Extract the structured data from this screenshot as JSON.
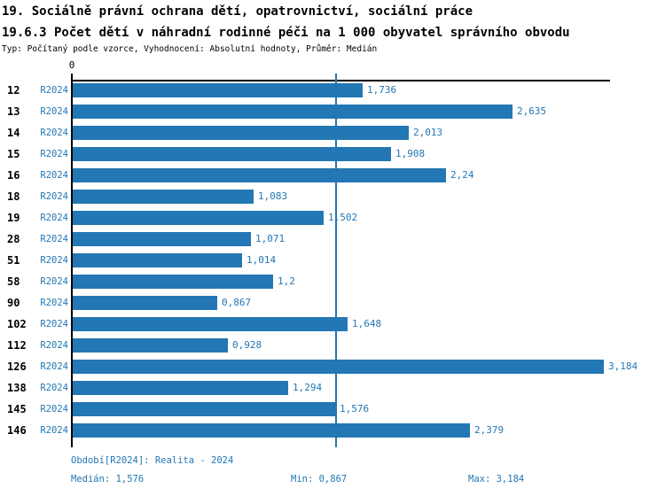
{
  "header": {
    "title_line1": "19. Sociálně právní ochrana dětí, opatrovnictví, sociální práce",
    "title_line2": "19.6.3 Počet dětí v náhradní rodinné péči na 1 000 obyvatel správního obvodu",
    "subtitle": "Typ: Počítaný podle vzorce, Vyhodnocení: Absolutní hodnoty, Průměr: Medián"
  },
  "chart_data": {
    "type": "bar",
    "orientation": "horizontal",
    "axis_origin_label": "0",
    "series_label": "R2024",
    "categories": [
      "12",
      "13",
      "14",
      "15",
      "16",
      "18",
      "19",
      "28",
      "51",
      "58",
      "90",
      "102",
      "112",
      "126",
      "138",
      "145",
      "146"
    ],
    "values": [
      1.736,
      2.635,
      2.013,
      1.908,
      2.24,
      1.083,
      1.502,
      1.071,
      1.014,
      1.2,
      0.867,
      1.648,
      0.928,
      3.184,
      1.294,
      1.576,
      2.379
    ],
    "value_labels": [
      "1,736",
      "2,635",
      "2,013",
      "1,908",
      "2,24",
      "1,083",
      "1,502",
      "1,071",
      "1,014",
      "1,2",
      "0,867",
      "1,648",
      "0,928",
      "3,184",
      "1,294",
      "1,576",
      "2,379"
    ],
    "xlim": [
      0,
      3.184
    ],
    "median_value": 1.576,
    "bar_color": "#2277b4",
    "median_line_color": "#2277b4",
    "grid": false,
    "legend": false
  },
  "footer": {
    "period": "Období[R2024]: Realita - 2024",
    "median": "Medián: 1,576",
    "min": "Min: 0,867",
    "max": "Max: 3,184"
  }
}
